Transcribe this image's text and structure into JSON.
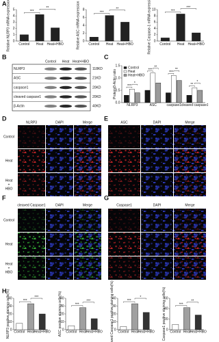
{
  "panel_labels": [
    "A",
    "B",
    "C",
    "D",
    "E",
    "F",
    "G",
    "H"
  ],
  "chart_data": [
    {
      "type": "bar",
      "ylabel": "Relative NLRP3 mRNA expression",
      "categories": [
        "Control",
        "Heat",
        "Heat+HBO"
      ],
      "values": [
        1.0,
        4.2,
        2.1
      ],
      "colors": [
        "#222222",
        "#222222",
        "#222222"
      ],
      "ylim": [
        0,
        5
      ],
      "yticks": [
        0,
        1,
        2,
        3,
        4,
        5
      ],
      "annotations": [
        "***",
        "**"
      ]
    },
    {
      "type": "bar",
      "ylabel": "Relative ASC mRNA expression",
      "categories": [
        "Control",
        "Heat",
        "Heat+HBO"
      ],
      "values": [
        1.0,
        6.5,
        4.8
      ],
      "colors": [
        "#222222",
        "#222222",
        "#222222"
      ],
      "ylim": [
        0,
        8
      ],
      "yticks": [
        0,
        2,
        4,
        6,
        8
      ],
      "annotations": [
        "***",
        "**"
      ]
    },
    {
      "type": "bar",
      "ylabel": "Relative Caspase-1 mRNA expression",
      "categories": [
        "Control",
        "Heat",
        "Heat+HBO"
      ],
      "values": [
        1.0,
        8.6,
        2.6
      ],
      "colors": [
        "#222222",
        "#222222",
        "#222222"
      ],
      "ylim": [
        0,
        10
      ],
      "yticks": [
        0,
        2,
        4,
        6,
        8,
        10
      ],
      "annotations": [
        "***",
        "***"
      ]
    },
    {
      "type": "bar",
      "ylabel": "Protein/β-Actin ratio",
      "categories": [
        "NLRP3",
        "ASC",
        "caspase1",
        "cleaved caspase1"
      ],
      "series": [
        {
          "name": "Control",
          "color": "#1a1a1a",
          "values": [
            0.3,
            0.5,
            0.4,
            0.3
          ]
        },
        {
          "name": "Heat",
          "color": "#ffffff",
          "values": [
            0.55,
            1.2,
            1.1,
            0.6
          ]
        },
        {
          "name": "Heat+HBO",
          "color": "#9a9a9a",
          "values": [
            0.4,
            0.8,
            0.9,
            0.5
          ]
        }
      ],
      "ylim": [
        0,
        1.5
      ],
      "yticks": [
        {
          "value": 0,
          "label": "0.0"
        },
        0.5,
        {
          "value": 1,
          "label": "1.0"
        },
        1.5
      ],
      "legend": "upper left",
      "annotations": [
        [
          "***",
          "*"
        ],
        [
          "***",
          "**"
        ],
        [
          "***",
          "**"
        ],
        [
          "**",
          "*"
        ]
      ]
    },
    {
      "type": "bar",
      "ylabel": "NLRP3 positive staining cells(%)",
      "categories": [
        "Control",
        "Heat",
        "Heat+HBO"
      ],
      "values": [
        8,
        33,
        20
      ],
      "colors": [
        "#ffffff",
        "#a0a0a0",
        "#333333"
      ],
      "ylim": [
        0,
        40
      ],
      "yticks": [
        0,
        10,
        20,
        30,
        40
      ],
      "annotations": [
        "***",
        "***"
      ]
    },
    {
      "type": "bar",
      "ylabel": "ASC positive staining cells(%)",
      "categories": [
        "Control",
        "Heat",
        "Heat+HBO"
      ],
      "values": [
        5,
        28,
        14
      ],
      "colors": [
        "#ffffff",
        "#a0a0a0",
        "#333333"
      ],
      "ylim": [
        0,
        40
      ],
      "yticks": [
        0,
        10,
        20,
        30,
        40
      ],
      "annotations": [
        "***",
        "***"
      ]
    },
    {
      "type": "bar",
      "ylabel": "cleaved Caspase1 positive staining cells(%)",
      "categories": [
        "Control",
        "Heat",
        "Heat+HBO"
      ],
      "values": [
        4,
        33,
        22
      ],
      "colors": [
        "#ffffff",
        "#a0a0a0",
        "#333333"
      ],
      "ylim": [
        0,
        40
      ],
      "yticks": [
        0,
        10,
        20,
        30,
        40
      ],
      "annotations": [
        "***",
        "*"
      ]
    },
    {
      "type": "bar",
      "ylabel": "Caspase1 positive staining cells(%)",
      "categories": [
        "Control",
        "Heat",
        "Heat+HBO"
      ],
      "values": [
        10,
        42,
        28
      ],
      "colors": [
        "#ffffff",
        "#a0a0a0",
        "#333333"
      ],
      "ylim": [
        0,
        60
      ],
      "yticks": [
        0,
        20,
        40,
        60
      ],
      "annotations": [
        "***",
        "**"
      ]
    }
  ],
  "blot": {
    "lanes": [
      "Control",
      "Heat",
      "Heat+HBO"
    ],
    "rows": [
      {
        "name": "NLRP3",
        "size": "118KD"
      },
      {
        "name": "ASC",
        "size": "21KD"
      },
      {
        "name": "caspase1",
        "size": "20KD"
      },
      {
        "name": "cleaved caspase1",
        "size": "20KD"
      },
      {
        "name": "β-Actin",
        "size": "40KD"
      }
    ]
  },
  "microscopy": [
    {
      "columns": [
        "NLRP3",
        "DAPI",
        "Merge"
      ],
      "color": "#e0282a",
      "rows": [
        [
          "Control"
        ],
        [
          "Heat"
        ],
        [
          "Heat",
          "+",
          "HBO"
        ]
      ]
    },
    {
      "columns": [
        "ASC",
        "DAPI",
        "Merge"
      ],
      "color": "#e0282a"
    },
    {
      "columns": [
        "cleaved Caspase1",
        "DAPI",
        "Merge"
      ],
      "color": "#3cd23c",
      "rows": [
        [
          "Control"
        ],
        [
          "Heat"
        ],
        [
          "Heat",
          "+",
          "HBO"
        ]
      ]
    },
    {
      "columns": [
        "Caspase1",
        "DAPI",
        "Merge"
      ],
      "color": "#e0282a"
    }
  ]
}
